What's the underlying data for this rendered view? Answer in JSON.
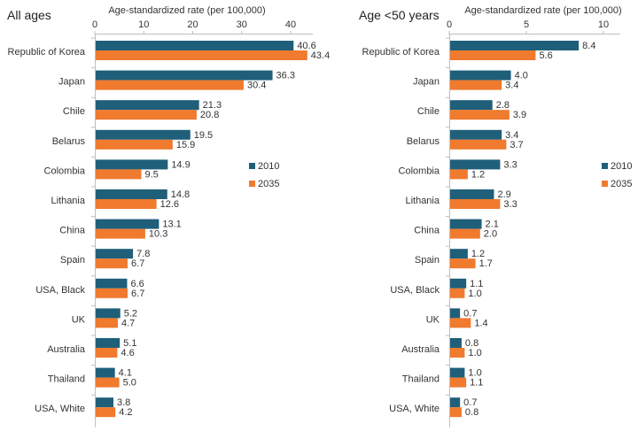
{
  "chart_data": [
    {
      "type": "bar",
      "orientation": "horizontal",
      "title": "All ages",
      "xlabel": "Age-standardized rate (per 100,000)",
      "ylabel": "",
      "xlim": [
        0,
        45
      ],
      "ticks": [
        0,
        10,
        20,
        30,
        40
      ],
      "categories": [
        "Republic of Korea",
        "Japan",
        "Chile",
        "Belarus",
        "Colombia",
        "Lithania",
        "China",
        "Spain",
        "USA, Black",
        "UK",
        "Australia",
        "Thailand",
        "USA, White"
      ],
      "series": [
        {
          "name": "2010",
          "color": "#1f5f7a",
          "values": [
            40.6,
            36.3,
            21.3,
            19.5,
            14.9,
            14.8,
            13.1,
            7.8,
            6.6,
            5.2,
            5.1,
            4.1,
            3.8
          ]
        },
        {
          "name": "2035",
          "color": "#f07a2e",
          "values": [
            43.4,
            30.4,
            20.8,
            15.9,
            9.5,
            12.6,
            10.3,
            6.7,
            6.7,
            4.7,
            4.6,
            5.0,
            4.2
          ]
        }
      ],
      "legend": "right"
    },
    {
      "type": "bar",
      "orientation": "horizontal",
      "title": "Age <50 years",
      "xlabel": "Age-standardized rate (per 100,000)",
      "ylabel": "",
      "xlim": [
        0,
        11
      ],
      "ticks": [
        0,
        5,
        10
      ],
      "categories": [
        "Republic of Korea",
        "Japan",
        "Chile",
        "Belarus",
        "Colombia",
        "Lithania",
        "China",
        "Spain",
        "USA, Black",
        "UK",
        "Australia",
        "Thailand",
        "USA, White"
      ],
      "series": [
        {
          "name": "2010",
          "color": "#1f5f7a",
          "values": [
            8.4,
            4.0,
            2.8,
            3.4,
            3.3,
            2.9,
            2.1,
            1.2,
            1.1,
            0.7,
            0.8,
            1.0,
            0.7
          ]
        },
        {
          "name": "2035",
          "color": "#f07a2e",
          "values": [
            5.6,
            3.4,
            3.9,
            3.7,
            1.2,
            3.3,
            2.0,
            1.7,
            1.0,
            1.4,
            1.0,
            1.1,
            0.8
          ]
        }
      ],
      "legend": "right"
    }
  ]
}
